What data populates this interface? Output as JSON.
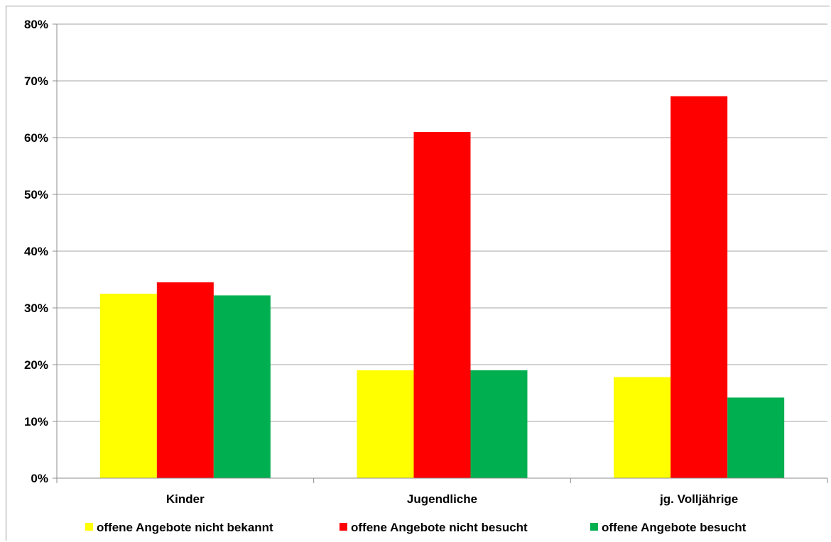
{
  "chart_data": {
    "type": "bar",
    "title": "",
    "xlabel": "",
    "ylabel": "",
    "categories": [
      "Kinder",
      "Jugendliche",
      "jg. Volljährige"
    ],
    "ylim": [
      0,
      80
    ],
    "yticks": [
      "0%",
      "10%",
      "20%",
      "30%",
      "40%",
      "50%",
      "60%",
      "70%",
      "80%"
    ],
    "grid": true,
    "legend_position": "bottom",
    "series": [
      {
        "name": "offene Angebote nicht bekannt",
        "color": "#ffff00",
        "values": [
          32.5,
          19.0,
          17.8
        ]
      },
      {
        "name": "offene Angebote nicht besucht",
        "color": "#ff0000",
        "values": [
          34.5,
          61.0,
          67.3
        ]
      },
      {
        "name": "offene Angebote besucht",
        "color": "#00b050",
        "values": [
          32.2,
          19.0,
          14.2
        ]
      }
    ]
  }
}
